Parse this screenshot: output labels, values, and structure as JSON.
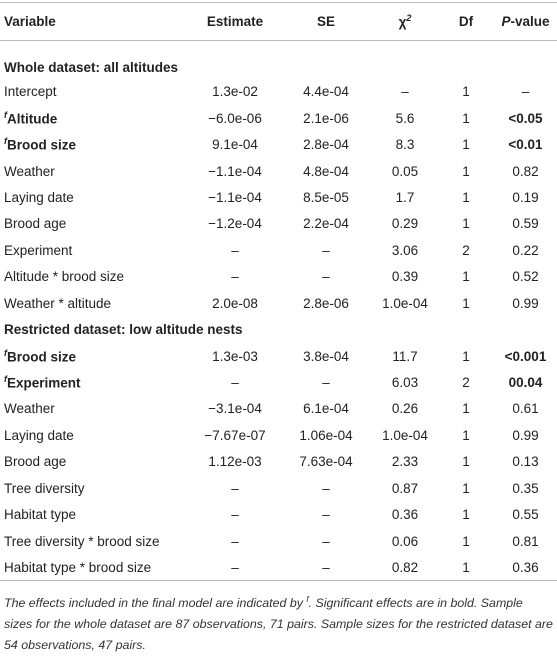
{
  "table": {
    "header": [
      {
        "text": "Variable"
      },
      {
        "text": "Estimate"
      },
      {
        "text": "SE"
      },
      {
        "text": "χ",
        "superscript": "2"
      },
      {
        "text": "Df"
      },
      {
        "italic": "P",
        "text": "-value"
      }
    ],
    "sections": [
      {
        "title": "Whole dataset: all altitudes",
        "rows": [
          {
            "variable": "Intercept",
            "cells": [
              "1.3e-02",
              "4.4e-04",
              "–",
              "1",
              "–"
            ]
          },
          {
            "variable": "Altitude",
            "superscript": "f",
            "bold": true,
            "cells": [
              "−6.0e-06",
              "2.1e-06",
              "5.6",
              "1",
              "<0.05"
            ]
          },
          {
            "variable": "Brood size",
            "superscript": "f",
            "bold": true,
            "cells": [
              "9.1e-04",
              "2.8e-04",
              "8.3",
              "1",
              "<0.01"
            ]
          },
          {
            "variable": "Weather",
            "cells": [
              "−1.1e-04",
              "4.8e-04",
              "0.05",
              "1",
              "0.82"
            ]
          },
          {
            "variable": "Laying date",
            "cells": [
              "−1.1e-04",
              "8.5e-05",
              "1.7",
              "1",
              "0.19"
            ]
          },
          {
            "variable": "Brood age",
            "cells": [
              "−1.2e-04",
              "2.2e-04",
              "0.29",
              "1",
              "0.59"
            ]
          },
          {
            "variable": "Experiment",
            "cells": [
              "–",
              "–",
              "3.06",
              "2",
              "0.22"
            ]
          },
          {
            "variable": "Altitude * brood size",
            "cells": [
              "–",
              "–",
              "0.39",
              "1",
              "0.52"
            ]
          },
          {
            "variable": "Weather * altitude",
            "cells": [
              "2.0e-08",
              "2.8e-06",
              "1.0e-04",
              "1",
              "0.99"
            ]
          }
        ]
      },
      {
        "title": "Restricted dataset: low altitude nests",
        "rows": [
          {
            "variable": "Brood size",
            "superscript": "f",
            "bold": true,
            "cells": [
              "1.3e-03",
              "3.8e-04",
              "11.7",
              "1",
              "<0.001"
            ]
          },
          {
            "variable": "Experiment",
            "superscript": "f",
            "bold": true,
            "cells": [
              "–",
              "–",
              "6.03",
              "2",
              "00.04"
            ]
          },
          {
            "variable": "Weather",
            "cells": [
              "−3.1e-04",
              "6.1e-04",
              "0.26",
              "1",
              "0.61"
            ]
          },
          {
            "variable": "Laying date",
            "cells": [
              "−7.67e-07",
              "1.06e-04",
              "1.0e-04",
              "1",
              "0.99"
            ]
          },
          {
            "variable": "Brood age",
            "cells": [
              "1.12e-03",
              "7.63e-04",
              "2.33",
              "1",
              "0.13"
            ]
          },
          {
            "variable": "Tree diversity",
            "cells": [
              "–",
              "–",
              "0.87",
              "1",
              "0.35"
            ]
          },
          {
            "variable": "Habitat type",
            "cells": [
              "–",
              "–",
              "0.36",
              "1",
              "0.55"
            ]
          },
          {
            "variable": "Tree diversity * brood size",
            "cells": [
              "–",
              "–",
              "0.06",
              "1",
              "0.81"
            ]
          },
          {
            "variable": "Habitat type * brood size",
            "cells": [
              "–",
              "–",
              "0.82",
              "1",
              "0.36"
            ]
          }
        ]
      }
    ],
    "footnote": [
      "The effects included in the final model are indicated by ",
      "f",
      ". Significant effects are in bold. Sample sizes for the whole dataset are 87 observations, 71 pairs. Sample sizes for the restricted dataset are 54 observations, 47 pairs."
    ]
  }
}
